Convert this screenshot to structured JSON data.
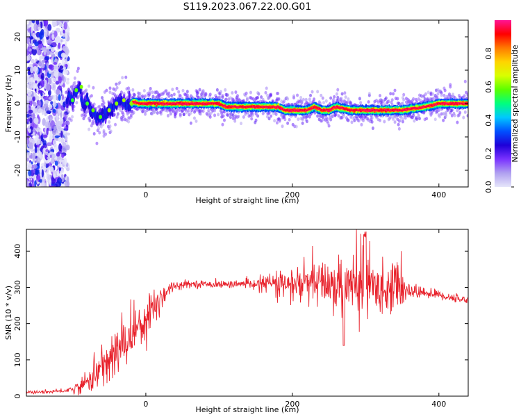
{
  "title": "S119.2023.067.22.00.G01",
  "chart_data": [
    {
      "type": "heatmap",
      "panel": "top",
      "xlabel": "Height of straight line (km)",
      "ylabel": "Frequency (Hz)",
      "xlim": [
        -163,
        440
      ],
      "ylim": [
        -25,
        25
      ],
      "xticks": [
        0,
        200,
        400
      ],
      "yticks": [
        -20,
        -10,
        0,
        10,
        20
      ],
      "colorbar": {
        "label": "Normalized spectral amplitude",
        "range": [
          0,
          1
        ],
        "ticks": [
          0.0,
          0.2,
          0.4,
          0.6,
          0.8
        ],
        "colormap": [
          "#e6e6fa",
          "#b0a0f0",
          "#7a32ff",
          "#1e00d8",
          "#0050ff",
          "#00c8ff",
          "#00ff7f",
          "#5aff00",
          "#d8ff00",
          "#ffd400",
          "#ff7a00",
          "#ff0000",
          "#ff1493"
        ]
      },
      "ridge": {
        "x": [
          -110,
          -105,
          -100,
          -95,
          -90,
          -85,
          -80,
          -75,
          -70,
          -65,
          -60,
          -55,
          -50,
          -45,
          -40,
          -35,
          -30,
          -25,
          -20,
          -15,
          -10,
          0,
          50,
          100,
          110,
          120,
          150,
          180,
          190,
          200,
          220,
          230,
          240,
          250,
          260,
          280,
          300,
          310,
          350,
          380,
          400,
          440
        ],
        "y": [
          -2,
          2,
          1,
          4,
          5,
          -1,
          1,
          -2,
          -3,
          -5,
          -4,
          -3,
          -2,
          -1,
          0,
          1,
          0,
          -1,
          0,
          0.5,
          0,
          0,
          0,
          0,
          -1,
          -1,
          -1,
          -1,
          -2,
          -2,
          -2,
          -1,
          -2,
          -2,
          -1,
          -2,
          -2,
          -2,
          -2,
          -1,
          0,
          0
        ]
      }
    },
    {
      "type": "line",
      "panel": "bottom",
      "xlabel": "Height of straight line (km)",
      "ylabel": "SNR (10 * v/v)",
      "xlim": [
        -163,
        440
      ],
      "ylim": [
        0,
        460
      ],
      "xticks": [
        0,
        200,
        400
      ],
      "yticks": [
        0,
        100,
        200,
        300,
        400
      ],
      "series": [
        {
          "color": "#e8202a",
          "envelope": {
            "x": [
              -163,
              -130,
              -110,
              -90,
              -80,
              -60,
              -40,
              -20,
              0,
              10,
              20,
              30,
              40,
              60,
              100,
              150,
              170,
              190,
              220,
              250,
              280,
              300,
              320,
              350,
              360,
              380,
              400,
              420,
              440
            ],
            "mean": [
              10,
              12,
              15,
              25,
              40,
              80,
              120,
              170,
              220,
              240,
              270,
              295,
              305,
              310,
              308,
              310,
              312,
              305,
              310,
              310,
              300,
              300,
              300,
              300,
              290,
              285,
              280,
              270,
              265
            ],
            "noise": [
              4,
              4,
              5,
              15,
              25,
              50,
              60,
              60,
              60,
              55,
              40,
              20,
              10,
              8,
              8,
              10,
              25,
              40,
              50,
              60,
              75,
              90,
              60,
              50,
              20,
              12,
              12,
              10,
              8
            ]
          }
        }
      ]
    }
  ]
}
